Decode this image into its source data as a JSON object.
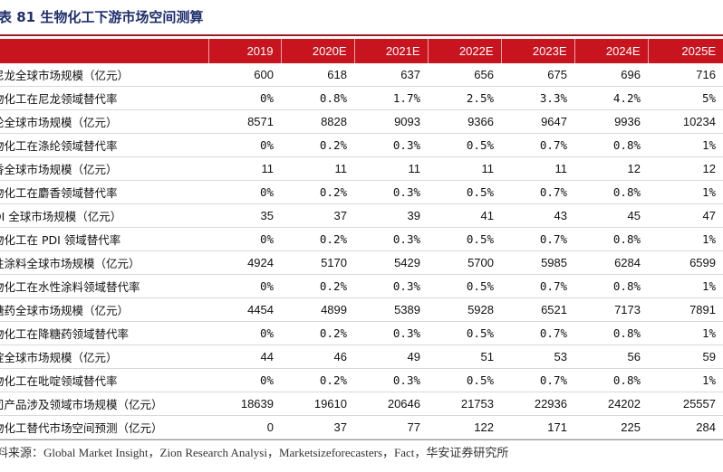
{
  "title": "表 81 生物化工下游市场空间测算",
  "header": [
    "",
    "2019",
    "2020E",
    "2021E",
    "2022E",
    "2023E",
    "2024E",
    "2025E"
  ],
  "rows": [
    [
      "尼龙全球市场规模（亿元）",
      "600",
      "618",
      "637",
      "656",
      "675",
      "696",
      "716"
    ],
    [
      "物化工在尼龙领域替代率",
      "0%",
      "0.8%",
      "1.7%",
      "2.5%",
      "3.3%",
      "4.2%",
      "5%"
    ],
    [
      "纶全球市场规模（亿元）",
      "8571",
      "8828",
      "9093",
      "9366",
      "9647",
      "9936",
      "10234"
    ],
    [
      "物化工在涤纶领域替代率",
      "0%",
      "0.2%",
      "0.3%",
      "0.5%",
      "0.7%",
      "0.8%",
      "1%"
    ],
    [
      "香全球市场规模（亿元）",
      "11",
      "11",
      "11",
      "11",
      "11",
      "12",
      "12"
    ],
    [
      "物化工在麝香领域替代率",
      "0%",
      "0.2%",
      "0.3%",
      "0.5%",
      "0.7%",
      "0.8%",
      "1%"
    ],
    [
      "DI 全球市场规模（亿元）",
      "35",
      "37",
      "39",
      "41",
      "43",
      "45",
      "47"
    ],
    [
      "物化工在 PDI 领域替代率",
      "0%",
      "0.2%",
      "0.3%",
      "0.5%",
      "0.7%",
      "0.8%",
      "1%"
    ],
    [
      "性涂料全球市场规模（亿元）",
      "4924",
      "5170",
      "5429",
      "5700",
      "5985",
      "6284",
      "6599"
    ],
    [
      "物化工在水性涂料领域替代率",
      "0%",
      "0.2%",
      "0.3%",
      "0.5%",
      "0.7%",
      "0.8%",
      "1%"
    ],
    [
      "糖药全球市场规模（亿元）",
      "4454",
      "4899",
      "5389",
      "5928",
      "6521",
      "7173",
      "7891"
    ],
    [
      "物化工在降糖药领域替代率",
      "0%",
      "0.2%",
      "0.3%",
      "0.5%",
      "0.7%",
      "0.8%",
      "1%"
    ],
    [
      "啶全球市场规模（亿元）",
      "44",
      "46",
      "49",
      "51",
      "53",
      "56",
      "59"
    ],
    [
      "物化工在吡啶领域替代率",
      "0%",
      "0.2%",
      "0.3%",
      "0.5%",
      "0.7%",
      "0.8%",
      "1%"
    ],
    [
      "司产品涉及领域市场规模（亿元）",
      "18639",
      "19610",
      "20646",
      "21753",
      "22936",
      "24202",
      "25557"
    ],
    [
      "物化工替代市场空间预测（亿元）",
      "0",
      "37",
      "77",
      "122",
      "171",
      "225",
      "284"
    ]
  ],
  "source": "料来源：Global Market Insight，Zion Research Analysi，Marketsizeforecasters，Fact，华安证券研究所"
}
